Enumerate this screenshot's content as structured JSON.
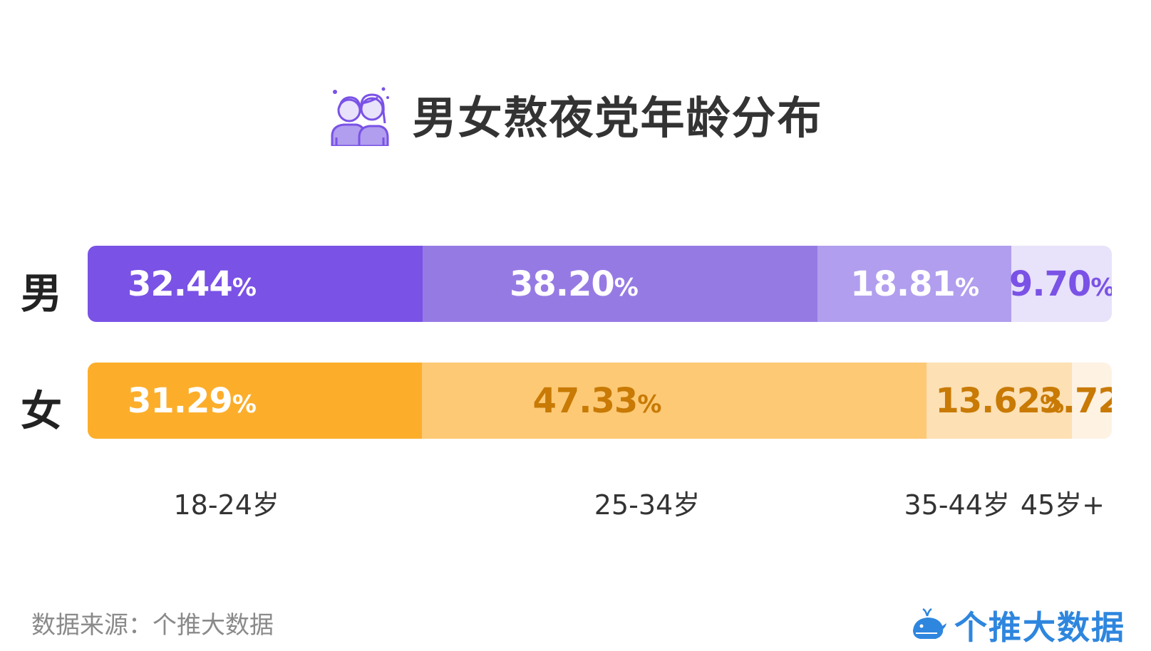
{
  "title": "男女熬夜党年龄分布",
  "colors": {
    "male": [
      "#7a52e6",
      "#967ae4",
      "#b19eee",
      "#e8e2fa"
    ],
    "female": [
      "#fcae2b",
      "#fdc975",
      "#fde0b4",
      "#fef2e3"
    ],
    "male_text": [
      "#ffffff",
      "#ffffff",
      "#ffffff",
      "#7a52e6"
    ],
    "female_text": [
      "#ffffff",
      "#c87a05",
      "#c87a05",
      "#c87a05"
    ]
  },
  "chart_data": {
    "type": "bar",
    "stacked": true,
    "orientation": "horizontal",
    "categories": [
      "18-24岁",
      "25-34岁",
      "35-44岁",
      "45岁+"
    ],
    "series": [
      {
        "name": "男",
        "values": [
          32.44,
          38.2,
          18.81,
          9.7
        ],
        "labels": [
          "32.44",
          "38.20",
          "18.81",
          "9.70"
        ]
      },
      {
        "name": "女",
        "values": [
          31.29,
          47.33,
          13.62,
          3.72
        ],
        "labels": [
          "31.29",
          "47.33",
          "13.62",
          "3.72"
        ]
      }
    ],
    "unit": "%"
  },
  "footer": {
    "source": "数据来源：个推大数据",
    "brand": "个推大数据"
  }
}
